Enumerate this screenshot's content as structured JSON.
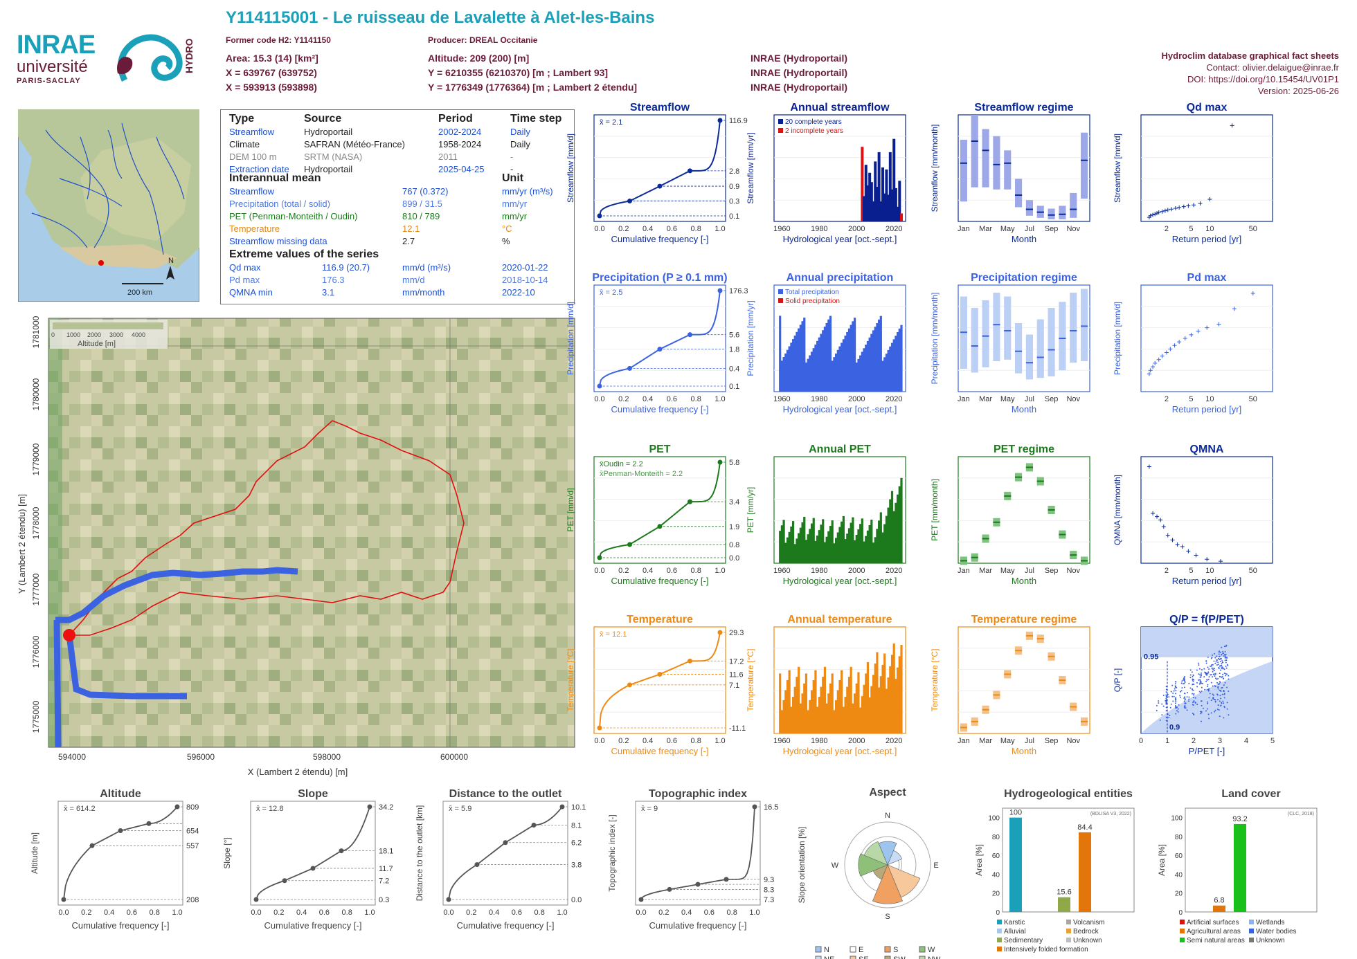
{
  "header": {
    "title": "Y114115001 - Le ruisseau de Lavalette à Alet-les-Bains",
    "former_code": "Former code H2: Y1141150",
    "producer": "Producer: DREAL Occitanie",
    "area": "Area: 15.3 (14) [km²]",
    "altitude": "Altitude: 209 (200) [m]",
    "x93": "X = 639767 (639752)",
    "y93": "Y = 6210355 (6210370) [m ; Lambert 93]",
    "x2": "X = 593913 (593898)",
    "y2": "Y = 1776349 (1776364) [m ; Lambert 2 étendu]",
    "src1": "INRAE (Hydroportail)",
    "src2": "INRAE (Hydroportail)",
    "src3": "INRAE (Hydroportail)"
  },
  "right_info": {
    "title": "Hydroclim database graphical fact sheets",
    "contact": "Contact: olivier.delaigue@inrae.fr",
    "doi": "DOI: https://doi.org/10.15454/UV01P1",
    "version": "Version: 2025-06-26"
  },
  "logos": {
    "inrae": "INRAE",
    "univ": "université",
    "univ2": "PARIS-SACLAY",
    "hydro": "HYDRO"
  },
  "minimap": {
    "north": "N",
    "scale": "200 km"
  },
  "infobox": {
    "head": [
      "Type",
      "Source",
      "Period",
      "Time step"
    ],
    "rows": [
      [
        "Streamflow",
        "Hydroportail",
        "2002-2024",
        "Daily"
      ],
      [
        "Climate",
        "SAFRAN (Météo-France)",
        "1958-2024",
        "Daily"
      ],
      [
        "DEM 100 m",
        "SRTM (NASA)",
        "2011",
        "-"
      ],
      [
        "Extraction date",
        "Hydroportail",
        "2025-04-25",
        "-"
      ]
    ],
    "mean_head": "Interannual mean",
    "unit_head": "Unit",
    "means": [
      [
        "Streamflow",
        "767 (0.372)",
        "mm/yr (m³/s)"
      ],
      [
        "Precipitation (total / solid)",
        "899 / 31.5",
        "mm/yr"
      ],
      [
        "PET (Penman-Monteith / Oudin)",
        "810 / 789",
        "mm/yr"
      ],
      [
        "Temperature",
        "12.1",
        "°C"
      ],
      [
        "Streamflow missing data",
        "2.7",
        "%"
      ]
    ],
    "extreme_head": "Extreme values of the series",
    "extremes": [
      [
        "Qd max",
        "116.9 (20.7)",
        "mm/d (m³/s)",
        "2020-01-22"
      ],
      [
        "Pd max",
        "176.3",
        "mm/d",
        "2018-10-14"
      ],
      [
        "QMNA min",
        "3.1",
        "mm/month",
        "2022-10"
      ]
    ]
  },
  "map": {
    "xlabel": "X (Lambert 2 étendu) [m]",
    "ylabel": "Y (Lambert 2 étendu) [m]",
    "xticks": [
      "594000",
      "596000",
      "598000",
      "600000"
    ],
    "yticks": [
      "1775000",
      "1776000",
      "1777000",
      "1778000",
      "1779000",
      "1780000",
      "1781000"
    ],
    "legend_title": "Altitude [m]",
    "legend_ticks": [
      "0",
      "1000",
      "2000",
      "3000",
      "4000"
    ]
  },
  "chart_data": [
    {
      "type": "line",
      "title": "Streamflow",
      "xlabel": "Cumulative frequency [-]",
      "ylabel": "Streamflow [mm/d]",
      "log_y": true,
      "mean_label": "x̄ = 2.1",
      "x": [
        0,
        0.25,
        0.5,
        0.75,
        1.0
      ],
      "y": [
        0.1,
        0.3,
        0.9,
        2.8,
        116.9
      ],
      "right_ticks": [
        "116.9",
        "2.8",
        "0.9",
        "0.3",
        "0.1"
      ]
    },
    {
      "type": "bar",
      "title": "Annual streamflow",
      "xlabel": "Hydrological year [oct.-sept.]",
      "ylabel": "Streamflow [mm/yr]",
      "legend": [
        "20 complete years",
        "2 incomplete years"
      ],
      "x": [
        2003,
        2004,
        2005,
        2006,
        2007,
        2008,
        2009,
        2010,
        2011,
        2012,
        2013,
        2014,
        2015,
        2016,
        2017,
        2018,
        2019,
        2020,
        2021,
        2022,
        2023,
        2024
      ],
      "values": [
        1120,
        380,
        850,
        540,
        730,
        590,
        300,
        900,
        520,
        1040,
        300,
        810,
        420,
        780,
        400,
        1040,
        480,
        1240,
        500,
        220,
        610,
        120
      ],
      "ylim": [
        0,
        1600
      ]
    },
    {
      "type": "bar",
      "title": "Streamflow regime",
      "xlabel": "Month",
      "ylabel": "Streamflow [mm/month]",
      "months": [
        "Jan",
        "Feb",
        "Mar",
        "Apr",
        "May",
        "Jun",
        "Jul",
        "Aug",
        "Sep",
        "Oct",
        "Nov",
        "Dec"
      ],
      "median": [
        82,
        113,
        100,
        80,
        82,
        37,
        17,
        13,
        9,
        10,
        17,
        86
      ],
      "q10": [
        28,
        48,
        48,
        45,
        45,
        20,
        8,
        5,
        3,
        3,
        5,
        32
      ],
      "q90": [
        115,
        150,
        130,
        120,
        100,
        60,
        30,
        22,
        18,
        22,
        40,
        125
      ],
      "ylim": [
        0,
        150
      ]
    },
    {
      "type": "scatter",
      "title": "Qd max",
      "xlabel": "Return period [yr]",
      "ylabel": "Streamflow [mm/d]",
      "x": [
        1.05,
        1.1,
        1.2,
        1.3,
        1.4,
        1.5,
        1.7,
        1.9,
        2.1,
        2.4,
        2.8,
        3.2,
        3.8,
        4.5,
        5.5,
        7,
        10,
        23
      ],
      "y": [
        5,
        7,
        8,
        9,
        10,
        11,
        12,
        13,
        14,
        15,
        16,
        17,
        18,
        19,
        20,
        22,
        27,
        117
      ],
      "ylim": [
        0,
        130
      ]
    },
    {
      "type": "line",
      "title": "Precipitation (P ≥ 0.1 mm)",
      "xlabel": "Cumulative frequency [-]",
      "ylabel": "Precipitation [mm/d]",
      "log_y": true,
      "mean_label": "x̄ = 2.5",
      "x": [
        0,
        0.25,
        0.5,
        0.75,
        1.0
      ],
      "y": [
        0.1,
        0.4,
        1.8,
        5.6,
        176.3
      ],
      "right_ticks": [
        "176.3",
        "5.6",
        "1.8",
        "0.4",
        "0.1"
      ]
    },
    {
      "type": "bar",
      "title": "Annual precipitation",
      "xlabel": "Hydrological year [oct.-sept.]",
      "ylabel": "Precipitation [mm/yr]",
      "legend": [
        "Total precipitation",
        "Solid precipitation"
      ],
      "ylim": [
        400,
        1500
      ]
    },
    {
      "type": "bar",
      "title": "Precipitation regime",
      "xlabel": "Month",
      "ylabel": "Precipitation [mm/month]",
      "months": [
        "Jan",
        "Feb",
        "Mar",
        "Apr",
        "May",
        "Jun",
        "Jul",
        "Aug",
        "Sep",
        "Oct",
        "Nov",
        "Dec"
      ],
      "median": [
        78,
        60,
        73,
        88,
        80,
        53,
        38,
        45,
        55,
        70,
        80,
        86
      ],
      "q10": [
        30,
        25,
        32,
        40,
        42,
        24,
        16,
        18,
        20,
        28,
        38,
        40
      ],
      "q90": [
        125,
        110,
        120,
        130,
        125,
        90,
        75,
        95,
        110,
        118,
        130,
        135
      ],
      "ylim": [
        0,
        140
      ]
    },
    {
      "type": "scatter",
      "title": "Pd max",
      "xlabel": "Return period [yr]",
      "ylabel": "Precipitation [mm/d]",
      "ylim": [
        0,
        180
      ]
    },
    {
      "type": "line",
      "title": "PET",
      "xlabel": "Cumulative frequency [-]",
      "ylabel": "PET [mm/d]",
      "mean_label": "x̄Oudin = 2.2",
      "mean_label2": "x̄Penman-Monteith = 2.2",
      "x": [
        0,
        0.25,
        0.5,
        0.75,
        1.0
      ],
      "y": [
        0.0,
        0.8,
        1.9,
        3.4,
        5.8
      ],
      "right_ticks": [
        "5.8",
        "3.4",
        "1.9",
        "0.8",
        "0.0"
      ]
    },
    {
      "type": "bar",
      "title": "Annual PET",
      "xlabel": "Hydrological year [oct.-sept.]",
      "ylabel": "PET [mm/yr]",
      "ylim": [
        600,
        1050
      ]
    },
    {
      "type": "bar",
      "title": "PET regime",
      "xlabel": "Month",
      "ylabel": "PET [mm/month]",
      "months": [
        "Jan",
        "Feb",
        "Mar",
        "Apr",
        "May",
        "Jun",
        "Jul",
        "Aug",
        "Sep",
        "Oct",
        "Nov",
        "Dec"
      ],
      "median": [
        18,
        22,
        45,
        65,
        97,
        120,
        132,
        115,
        80,
        50,
        25,
        18
      ],
      "ylim": [
        15,
        145
      ]
    },
    {
      "type": "scatter",
      "title": "QMNA",
      "xlabel": "Return period [yr]",
      "ylabel": "QMNA [mm/month]",
      "x": [
        1.05,
        1.2,
        1.4,
        1.6,
        1.8,
        2.1,
        2.5,
        3,
        3.6,
        4.5,
        6,
        9,
        15
      ],
      "y": [
        17.5,
        10.5,
        10,
        9.5,
        8.5,
        7.2,
        6.5,
        5.8,
        5.5,
        4.8,
        4.2,
        3.6,
        3.3
      ],
      "ylim": [
        3,
        19
      ]
    },
    {
      "type": "line",
      "title": "Temperature",
      "xlabel": "Cumulative frequency [-]",
      "ylabel": "Temperature [°C]",
      "mean_label": "x̄ = 12.1",
      "x": [
        0,
        0.25,
        0.5,
        0.75,
        1.0
      ],
      "y": [
        -11.1,
        7.1,
        11.6,
        17.2,
        29.3
      ],
      "right_ticks": [
        "29.3",
        "17.2",
        "11.6",
        "7.1",
        "-11.1"
      ]
    },
    {
      "type": "bar",
      "title": "Annual temperature",
      "xlabel": "Hydrological year [oct.-sept.]",
      "ylabel": "Temperature [°C]",
      "ylim": [
        10.3,
        13.5
      ]
    },
    {
      "type": "bar",
      "title": "Temperature regime",
      "xlabel": "Month",
      "ylabel": "Temperature [°C]",
      "months": [
        "Jan",
        "Feb",
        "Mar",
        "Apr",
        "May",
        "Jun",
        "Jul",
        "Aug",
        "Sep",
        "Oct",
        "Nov",
        "Dec"
      ],
      "median": [
        5,
        6,
        8,
        10.5,
        14,
        18,
        20.5,
        20,
        17,
        13,
        8.5,
        6
      ],
      "ylim": [
        4,
        22
      ]
    },
    {
      "type": "scatter",
      "title": "Q/P = f(P/PET)",
      "xlabel": "P/PET [-]",
      "ylabel": "Q/P [-]",
      "label1": "0.95",
      "label2": "0.9",
      "xlim": [
        0,
        5
      ],
      "ylim": [
        0,
        1.4
      ]
    },
    {
      "type": "line",
      "title": "Altitude",
      "xlabel": "Cumulative frequency [-]",
      "ylabel": "Altitude [m]",
      "mean_label": "x̄ = 614.2",
      "x": [
        0,
        0.25,
        0.5,
        0.75,
        1.0
      ],
      "y": [
        208,
        557,
        654,
        700,
        809
      ],
      "right_ticks": [
        "809",
        "654",
        "557",
        "208"
      ]
    },
    {
      "type": "line",
      "title": "Slope",
      "xlabel": "Cumulative frequency [-]",
      "ylabel": "Slope [°]",
      "mean_label": "x̄ = 12.8",
      "x": [
        0,
        0.25,
        0.5,
        0.75,
        1.0
      ],
      "y": [
        0.3,
        7.2,
        11.7,
        18.1,
        34.2
      ],
      "right_ticks": [
        "34.2",
        "18.1",
        "11.7",
        "7.2",
        "0.3"
      ]
    },
    {
      "type": "line",
      "title": "Distance to the outlet",
      "xlabel": "Cumulative frequency [-]",
      "ylabel": "Distance to the outlet [km]",
      "mean_label": "x̄ = 5.9",
      "x": [
        0,
        0.25,
        0.5,
        0.75,
        1.0
      ],
      "y": [
        0,
        3.8,
        6.2,
        8.1,
        10.1
      ],
      "right_ticks": [
        "10.1",
        "8.1",
        "6.2",
        "3.8",
        "0.0"
      ]
    },
    {
      "type": "line",
      "title": "Topographic index",
      "xlabel": "Cumulative frequency [-]",
      "ylabel": "Topographic index [-]",
      "mean_label": "x̄ = 9",
      "x": [
        0,
        0.25,
        0.5,
        0.75,
        1.0
      ],
      "y": [
        7.3,
        8.3,
        8.8,
        9.3,
        16.5
      ],
      "right_ticks": [
        "16.5",
        "9.3",
        "8.3",
        "7.3"
      ]
    },
    {
      "type": "pie",
      "title": "Aspect",
      "ylabel": "Slope orientation [%]",
      "legend": [
        "N",
        "NE",
        "E",
        "SE",
        "S",
        "SW",
        "W",
        "NW"
      ],
      "values": [
        12,
        8,
        6,
        18,
        20,
        8,
        15,
        13
      ]
    },
    {
      "type": "bar",
      "title": "Hydrogeological entities",
      "ylabel": "Area [%]",
      "note": "(BDLISA V3, 2022)",
      "categories": [
        "Karstic",
        "Sedimentary",
        "Intensively folded formation"
      ],
      "values": [
        100,
        15.6,
        84.4
      ],
      "labels": [
        "100",
        "15.6",
        "84.4"
      ],
      "legend": [
        "Karstic",
        "Volcanism",
        "Alluvial",
        "Bedrock",
        "Sedimentary",
        "Unknown",
        "Intensively folded formation"
      ]
    },
    {
      "type": "bar",
      "title": "Land cover",
      "ylabel": "Area [%]",
      "note": "(CLC, 2018)",
      "categories": [
        "Agricultural areas",
        "Semi natural areas"
      ],
      "values": [
        6.8,
        93.2
      ],
      "labels": [
        "6.8",
        "93.2"
      ],
      "legend": [
        "Artificial surfaces",
        "Wetlands",
        "Agricultural areas",
        "Water bodies",
        "Semi natural areas",
        "Unknown"
      ]
    }
  ],
  "colors": {
    "blue": "#1d4fd1",
    "dblue": "#0a1f8f",
    "green": "#1c7a1c",
    "orange": "#ee8a12",
    "teal": "#1aa0b8",
    "maroon": "#6b1b3a"
  }
}
